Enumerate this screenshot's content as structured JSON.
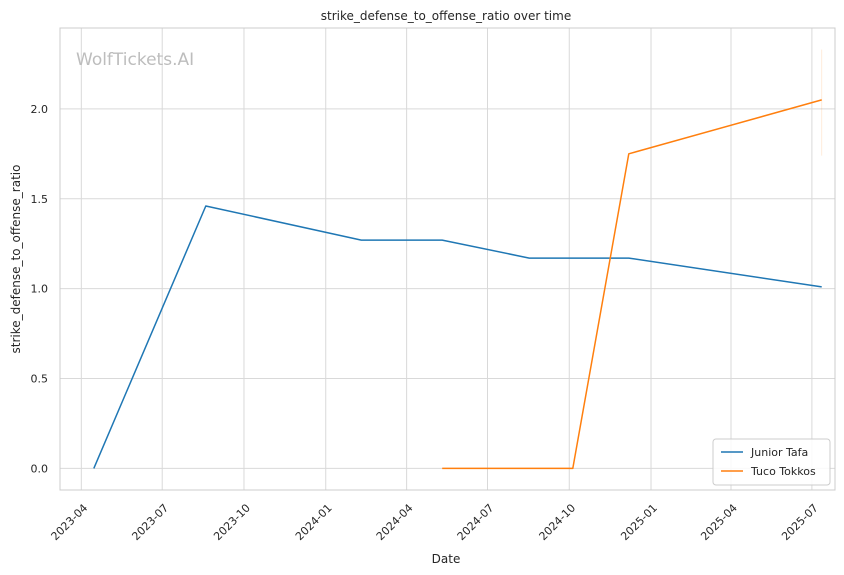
{
  "chart_data": {
    "type": "line",
    "title": "strike_defense_to_offense_ratio over time",
    "xlabel": "Date",
    "ylabel": "strike_defense_to_offense_ratio",
    "watermark": "WolfTickets.AI",
    "x_ticks": [
      "2023-04",
      "2023-07",
      "2023-10",
      "2024-01",
      "2024-04",
      "2024-07",
      "2024-10",
      "2025-01",
      "2025-04",
      "2025-07"
    ],
    "y_ticks": [
      "0.0",
      "0.5",
      "1.0",
      "1.5",
      "2.0"
    ],
    "xlim": [
      "2023-03-08",
      "2025-07-27"
    ],
    "ylim": [
      -0.12,
      2.45
    ],
    "grid": true,
    "legend_position": "lower-right",
    "series": [
      {
        "name": "Junior Tafa",
        "color": "#1f77b4",
        "points": [
          {
            "x": "2023-04-15",
            "y": 0.0
          },
          {
            "x": "2023-08-19",
            "y": 1.46
          },
          {
            "x": "2024-02-10",
            "y": 1.27
          },
          {
            "x": "2024-05-11",
            "y": 1.27
          },
          {
            "x": "2024-08-17",
            "y": 1.17
          },
          {
            "x": "2024-12-07",
            "y": 1.17
          },
          {
            "x": "2025-07-12",
            "y": 1.01
          }
        ]
      },
      {
        "name": "Tuco Tokkos",
        "color": "#ff7f0e",
        "points": [
          {
            "x": "2024-05-11",
            "y": 0.0
          },
          {
            "x": "2024-10-05",
            "y": 0.0
          },
          {
            "x": "2024-12-07",
            "y": 1.75
          },
          {
            "x": "2025-07-12",
            "y": 2.05
          }
        ]
      }
    ]
  }
}
